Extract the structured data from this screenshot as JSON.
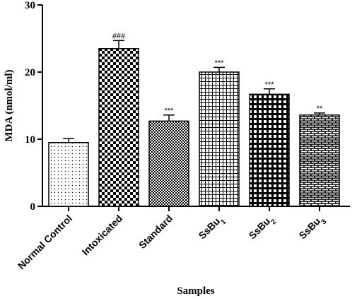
{
  "chart_data": {
    "type": "bar",
    "xlabel": "Samples",
    "ylabel": "MDA (nmol/ml)",
    "ylim": [
      0,
      30
    ],
    "yticks": [
      0,
      10,
      20,
      30
    ],
    "grid": false,
    "categories": [
      {
        "base": "Normal Control",
        "sub": ""
      },
      {
        "base": "Intoxicated",
        "sub": ""
      },
      {
        "base": "Standard",
        "sub": ""
      },
      {
        "base": "SsBu",
        "sub": "1"
      },
      {
        "base": "SsBu",
        "sub": "2"
      },
      {
        "base": "SsBu",
        "sub": "3"
      }
    ],
    "values": [
      9.5,
      23.5,
      12.7,
      20.0,
      16.7,
      13.6
    ],
    "errors": [
      0.6,
      1.2,
      0.9,
      0.7,
      0.8,
      0.3
    ],
    "annotations": [
      "",
      "###",
      "***",
      "***",
      "***",
      "**"
    ],
    "patterns": [
      "dots",
      "checker",
      "checker-fine",
      "grid-fine",
      "grid-bold",
      "brick"
    ]
  }
}
